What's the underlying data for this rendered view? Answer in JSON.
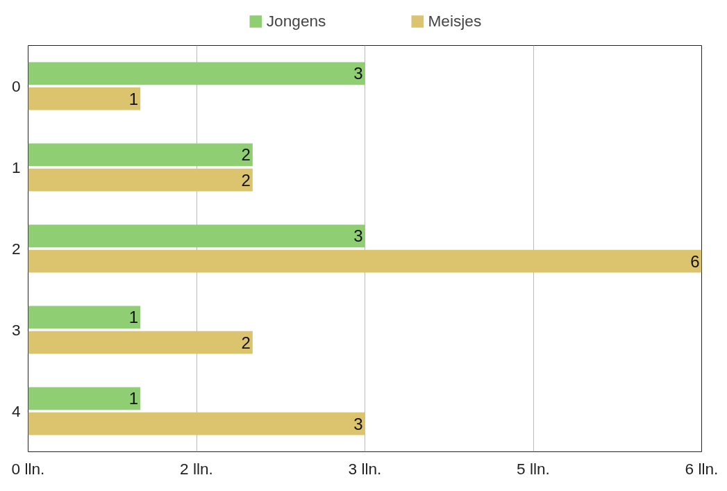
{
  "chart_data": {
    "type": "bar",
    "orientation": "horizontal",
    "categories": [
      "0",
      "1",
      "2",
      "3",
      "4"
    ],
    "series": [
      {
        "name": "Jongens",
        "color": "#8fce72",
        "values": [
          3,
          2,
          3,
          1,
          1
        ]
      },
      {
        "name": "Meisjes",
        "color": "#dcc36e",
        "values": [
          1,
          2,
          6,
          2,
          3
        ]
      }
    ],
    "xlim": [
      0,
      6
    ],
    "xticks": [
      {
        "value": 0,
        "label": "0 lln."
      },
      {
        "value": 1.5,
        "label": "2 lln."
      },
      {
        "value": 3,
        "label": "3 lln."
      },
      {
        "value": 4.5,
        "label": "5 lln."
      },
      {
        "value": 6,
        "label": "6 lln."
      }
    ],
    "grid": "x",
    "legend": "top",
    "data_labels": true
  }
}
